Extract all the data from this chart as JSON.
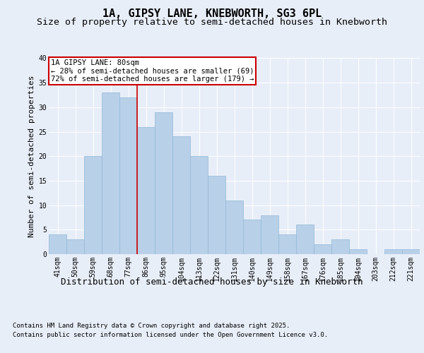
{
  "title": "1A, GIPSY LANE, KNEBWORTH, SG3 6PL",
  "subtitle": "Size of property relative to semi-detached houses in Knebworth",
  "xlabel": "Distribution of semi-detached houses by size in Knebworth",
  "ylabel": "Number of semi-detached properties",
  "categories": [
    "41sqm",
    "50sqm",
    "59sqm",
    "68sqm",
    "77sqm",
    "86sqm",
    "95sqm",
    "104sqm",
    "113sqm",
    "122sqm",
    "131sqm",
    "140sqm",
    "149sqm",
    "158sqm",
    "167sqm",
    "176sqm",
    "185sqm",
    "194sqm",
    "203sqm",
    "212sqm",
    "221sqm"
  ],
  "values": [
    4,
    3,
    20,
    33,
    32,
    26,
    29,
    24,
    20,
    16,
    11,
    7,
    8,
    4,
    6,
    2,
    3,
    1,
    0,
    1,
    1
  ],
  "bar_color": "#b8d0e8",
  "bar_edge_color": "#92b8d8",
  "property_line_label": "1A GIPSY LANE: 80sqm",
  "annotation_smaller": "← 28% of semi-detached houses are smaller (69)",
  "annotation_larger": "72% of semi-detached houses are larger (179) →",
  "annotation_box_color": "#ffffff",
  "annotation_box_edge": "#cc0000",
  "ylim": [
    0,
    40
  ],
  "yticks": [
    0,
    5,
    10,
    15,
    20,
    25,
    30,
    35,
    40
  ],
  "bg_color": "#e8eef8",
  "plot_bg_color": "#e8eef8",
  "footer_line1": "Contains HM Land Registry data © Crown copyright and database right 2025.",
  "footer_line2": "Contains public sector information licensed under the Open Government Licence v3.0.",
  "title_fontsize": 11,
  "subtitle_fontsize": 9.5,
  "tick_fontsize": 7,
  "xlabel_fontsize": 9,
  "ylabel_fontsize": 8,
  "footer_fontsize": 6.5,
  "annot_fontsize": 7.5
}
